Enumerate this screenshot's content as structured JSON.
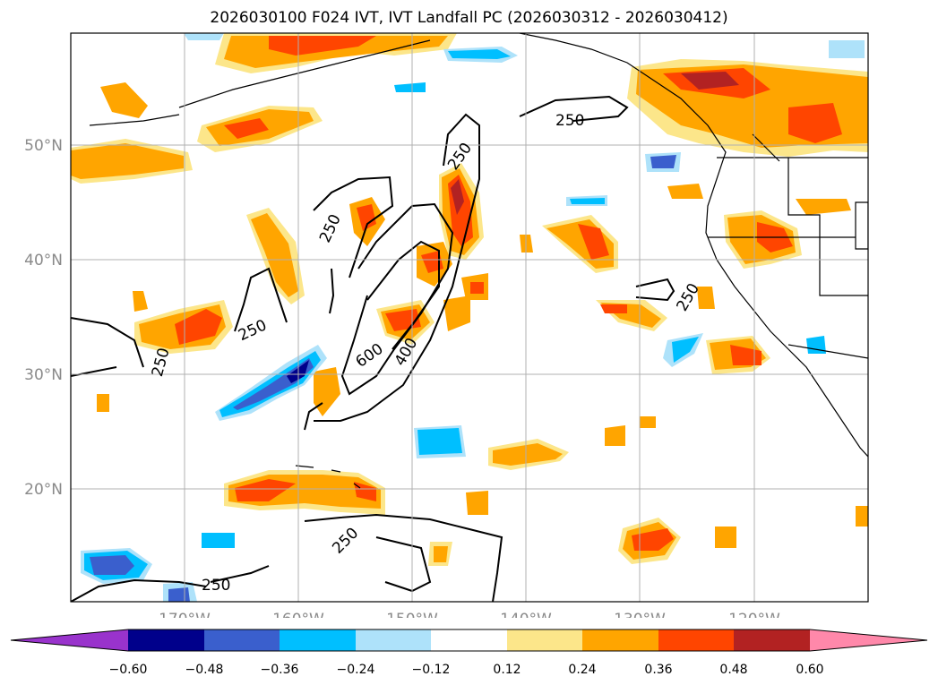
{
  "title": "2026030100 F024 IVT, IVT Landfall PC (2026030312 - 2026030412)",
  "map": {
    "lat_labels": [
      "50°N",
      "40°N",
      "30°N",
      "20°N"
    ],
    "lon_labels": [
      "170°W",
      "160°W",
      "150°W",
      "140°W",
      "130°W",
      "120°W"
    ],
    "label_color": "#8a8a8a",
    "contour_labels": [
      "250",
      "250",
      "250",
      "250",
      "250",
      "250",
      "250",
      "250",
      "400",
      "600"
    ]
  },
  "colorbar": {
    "ticks": [
      "−0.60",
      "−0.48",
      "−0.36",
      "−0.24",
      "−0.12",
      "0.12",
      "0.24",
      "0.36",
      "0.48",
      "0.60"
    ],
    "colors": [
      "#9933cc",
      "#00008b",
      "#3a5fcd",
      "#00bfff",
      "#aee2fa",
      "#ffffff",
      "#fce68a",
      "#ffa500",
      "#ff4500",
      "#b22222",
      "#ff88aa"
    ]
  }
}
